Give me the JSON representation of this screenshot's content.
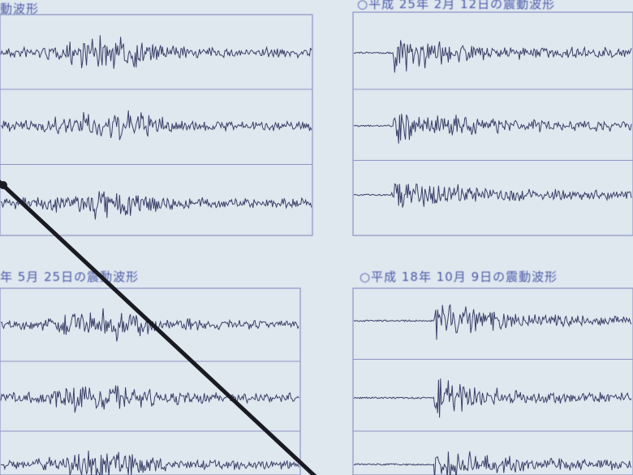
{
  "panels": [
    {
      "title": "動波形",
      "traces": 3
    },
    {
      "title": "○平成 25年 2月 12日の震動波形",
      "traces": 3
    },
    {
      "title": "年 5月 25日の震動波形",
      "traces": 3
    },
    {
      "title": "○平成 18年 10月 9日の震動波形",
      "traces": 3
    }
  ],
  "colors": {
    "background": "#dfe7ef",
    "waveform": "#1c2350",
    "frame": "#8c96c4",
    "pointer": "#1a1a22"
  }
}
